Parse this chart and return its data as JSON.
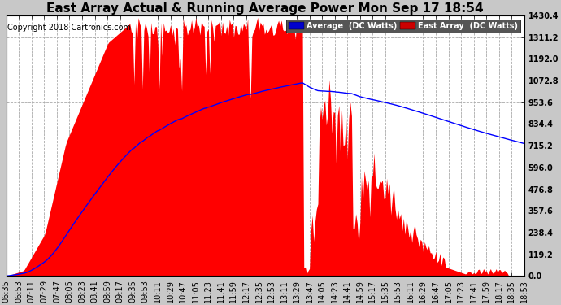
{
  "title": "East Array Actual & Running Average Power Mon Sep 17 18:54",
  "copyright": "Copyright 2018 Cartronics.com",
  "ylim": [
    0.0,
    1430.4
  ],
  "yticks": [
    0.0,
    119.2,
    238.4,
    357.6,
    476.8,
    596.0,
    715.2,
    834.4,
    953.6,
    1072.8,
    1192.0,
    1311.2,
    1430.4
  ],
  "fig_bg_color": "#c8c8c8",
  "plot_bg_color": "#ffffff",
  "grid_color": "#aaaaaa",
  "east_array_color": "#ff0000",
  "average_color": "#0000ff",
  "legend_avg_bg": "#0000cc",
  "legend_east_bg": "#cc0000",
  "legend_avg_text": "Average  (DC Watts)",
  "legend_east_text": "East Array  (DC Watts)",
  "title_fontsize": 11,
  "tick_fontsize": 7,
  "copyright_fontsize": 7
}
